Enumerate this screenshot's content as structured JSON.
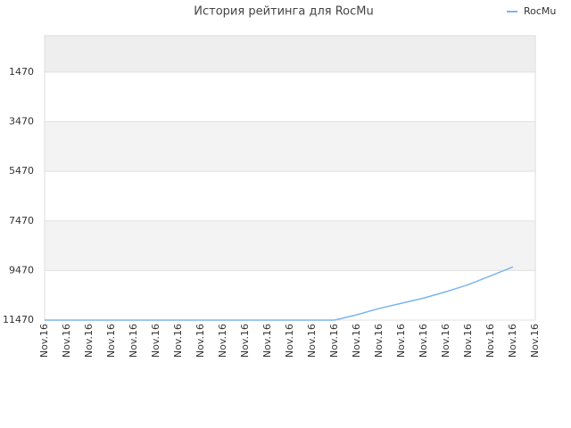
{
  "chart_data": {
    "type": "line",
    "title": "История рейтинга для RocMu",
    "categories": [
      "Nov.16",
      "Nov.16",
      "Nov.16",
      "Nov.16",
      "Nov.16",
      "Nov.16",
      "Nov.16",
      "Nov.16",
      "Nov.16",
      "Nov.16",
      "Nov.16",
      "Nov.16",
      "Nov.16",
      "Nov.16",
      "Nov.16",
      "Nov.16",
      "Nov.16",
      "Nov.16",
      "Nov.16",
      "Nov.16",
      "Nov.16",
      "Nov.16",
      "Nov.16"
    ],
    "series": [
      {
        "name": "RocMu",
        "color": "#7cb5ec",
        "values": [
          11470,
          11470,
          11470,
          11470,
          11470,
          11470,
          11470,
          11470,
          11470,
          11470,
          11470,
          11470,
          11470,
          11470,
          11255,
          11000,
          10790,
          10580,
          10325,
          10040,
          9685,
          9325,
          null
        ]
      }
    ],
    "ylim": [
      11470,
      0
    ],
    "yticks": [
      1470,
      3470,
      5470,
      7470,
      9470,
      11470
    ],
    "y_reversed": true,
    "grid": true,
    "legend": "top-right"
  }
}
